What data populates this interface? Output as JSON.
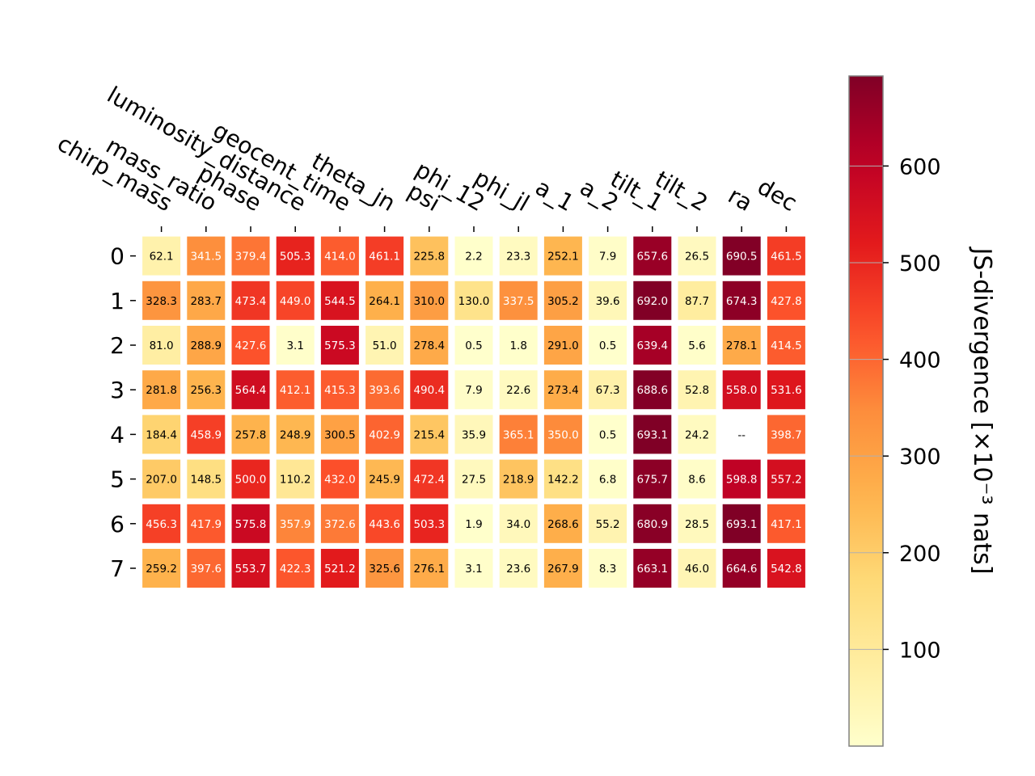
{
  "chart_data": {
    "type": "heatmap",
    "title": "",
    "columns": [
      "chirp_mass",
      "mass_ratio",
      "phase",
      "luminosity_distance",
      "geocent_time",
      "theta_jn",
      "psi",
      "phi_12",
      "phi_jl",
      "a_1",
      "a_2",
      "tilt_1",
      "tilt_2",
      "ra",
      "dec"
    ],
    "rows": [
      "0",
      "1",
      "2",
      "3",
      "4",
      "5",
      "6",
      "7"
    ],
    "values": [
      [
        62.1,
        341.5,
        379.4,
        505.3,
        414.0,
        461.1,
        225.8,
        2.2,
        23.3,
        252.1,
        7.9,
        657.6,
        26.5,
        690.5,
        461.5
      ],
      [
        328.3,
        283.7,
        473.4,
        449.0,
        544.5,
        264.1,
        310.0,
        130.0,
        337.5,
        305.2,
        39.6,
        692.0,
        87.7,
        674.3,
        427.8
      ],
      [
        81.0,
        288.9,
        427.6,
        3.1,
        575.3,
        51.0,
        278.4,
        0.5,
        1.8,
        291.0,
        0.5,
        639.4,
        5.6,
        278.1,
        414.5
      ],
      [
        281.8,
        256.3,
        564.4,
        412.1,
        415.3,
        393.6,
        490.4,
        7.9,
        22.6,
        273.4,
        67.3,
        688.6,
        52.8,
        558.0,
        531.6
      ],
      [
        184.4,
        458.9,
        257.8,
        248.9,
        300.5,
        402.9,
        215.4,
        35.9,
        365.1,
        350.0,
        0.5,
        693.1,
        24.2,
        null,
        398.7
      ],
      [
        207.0,
        148.5,
        500.0,
        110.2,
        432.0,
        245.9,
        472.4,
        27.5,
        218.9,
        142.2,
        6.8,
        675.7,
        8.6,
        598.8,
        557.2
      ],
      [
        456.3,
        417.9,
        575.8,
        357.9,
        372.6,
        443.6,
        503.3,
        1.9,
        34.0,
        268.6,
        55.2,
        680.9,
        28.5,
        693.1,
        417.1
      ],
      [
        259.2,
        397.6,
        553.7,
        422.3,
        521.2,
        325.6,
        276.1,
        3.1,
        23.6,
        267.9,
        8.3,
        663.1,
        46.0,
        664.6,
        542.8
      ]
    ],
    "missing_label": "--",
    "colormap": "YlOrRd",
    "color_range": [
      0,
      693.1
    ],
    "colorbar": {
      "label": "JS-divergence [×10⁻³ nats]",
      "ticks": [
        100,
        200,
        300,
        400,
        500,
        600
      ],
      "gridlines": true
    }
  }
}
